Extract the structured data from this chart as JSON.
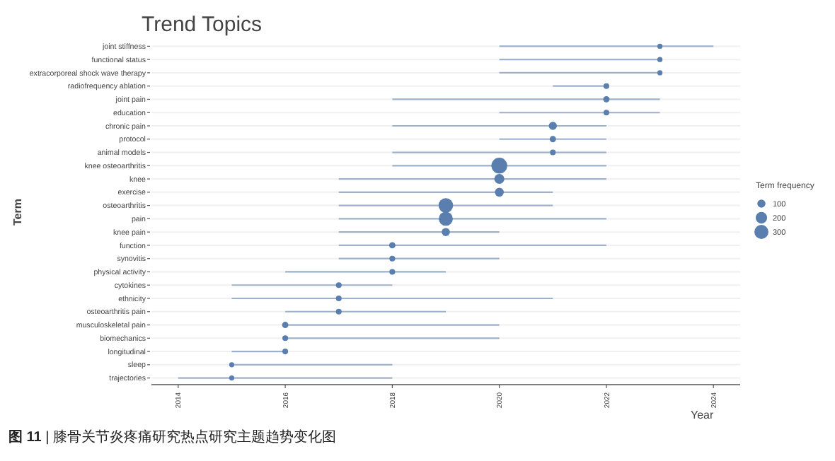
{
  "chart_data": {
    "type": "bubble",
    "orientation": "horizontal",
    "title": "Trend Topics",
    "xlabel": "Year",
    "ylabel": "Term",
    "legend_title": "Term frequency",
    "grid": "y",
    "annotations": [
      "**图 11** | 膝骨关节炎疼痛研究热点研究主题趋势变化图"
    ],
    "categories": [
      "joint stiffness",
      "functional status",
      "extracorporeal shock wave therapy",
      "radiofrequency ablation",
      "joint pain",
      "education",
      "chronic pain",
      "protocol",
      "animal models",
      "knee osteoarthritis",
      "knee",
      "exercise",
      "osteoarthritis",
      "pain",
      "knee pain",
      "function",
      "synovitis",
      "physical activity",
      "cytokines",
      "ethnicity",
      "osteoarthritis pain",
      "musculoskeletal pain",
      "biomechanics",
      "longitudinal",
      "sleep",
      "trajectories"
    ],
    "values": [
      2023,
      2023,
      2023,
      2022,
      2022,
      2022,
      2021,
      2021,
      2021,
      2020,
      2020,
      2020,
      2019,
      2019,
      2019,
      2018,
      2018,
      2018,
      2017,
      2017,
      2017,
      2016,
      2016,
      2016,
      2015,
      2015
    ],
    "errors": [
      [
        2020,
        2024
      ],
      [
        2020,
        2023
      ],
      [
        2020,
        2023
      ],
      [
        2021,
        2022
      ],
      [
        2018,
        2023
      ],
      [
        2020,
        2023
      ],
      [
        2018,
        2022
      ],
      [
        2020,
        2022
      ],
      [
        2018,
        2022
      ],
      [
        2018,
        2022
      ],
      [
        2017,
        2022
      ],
      [
        2017,
        2021
      ],
      [
        2017,
        2021
      ],
      [
        2017,
        2022
      ],
      [
        2017,
        2020
      ],
      [
        2017,
        2022
      ],
      [
        2017,
        2020
      ],
      [
        2016,
        2019
      ],
      [
        2015,
        2018
      ],
      [
        2015,
        2021
      ],
      [
        2016,
        2019
      ],
      [
        2016,
        2020
      ],
      [
        2016,
        2020
      ],
      [
        2015,
        2016
      ],
      [
        2015,
        2018
      ],
      [
        2014,
        2018
      ]
    ],
    "sizes": [
      40,
      40,
      40,
      50,
      60,
      50,
      100,
      60,
      50,
      380,
      150,
      120,
      320,
      300,
      100,
      60,
      50,
      50,
      50,
      50,
      50,
      60,
      50,
      50,
      40,
      40
    ],
    "size_legend": [
      100,
      200,
      300
    ],
    "color": "#5a7eae",
    "xlim": [
      2013.5,
      2024.5
    ],
    "xticks": [
      2014,
      2016,
      2018,
      2020,
      2022,
      2024
    ]
  }
}
